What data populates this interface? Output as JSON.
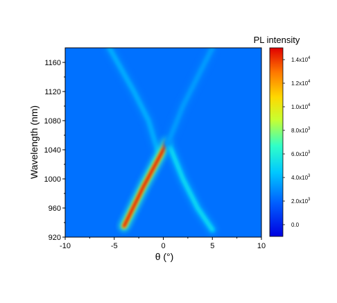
{
  "chart_data": {
    "type": "heatmap",
    "title": "",
    "xlabel": "θ (°)",
    "ylabel": "Wavelength (nm)",
    "xlim": [
      -10,
      10
    ],
    "ylim": [
      920,
      1180
    ],
    "x_ticks": [
      "-10",
      "-5",
      "0",
      "5",
      "10"
    ],
    "y_ticks": [
      "920",
      "960",
      "1000",
      "1040",
      "1080",
      "1120",
      "1160"
    ],
    "colorbar": {
      "title": "PL intensity",
      "range": [
        -1000,
        15000
      ],
      "tick_values": [
        0,
        2000,
        4000,
        6000,
        8000,
        10000,
        12000,
        14000
      ],
      "tick_labels": [
        {
          "base": "0.0",
          "exp": ""
        },
        {
          "base": "2.0x10",
          "exp": "3"
        },
        {
          "base": "4.0x10",
          "exp": "3"
        },
        {
          "base": "6.0x10",
          "exp": "3"
        },
        {
          "base": "8.0x10",
          "exp": "3"
        },
        {
          "base": "1.0x10",
          "exp": "4"
        },
        {
          "base": "1.2x10",
          "exp": "4"
        },
        {
          "base": "1.4x10",
          "exp": "4"
        }
      ]
    },
    "background_level": 2300,
    "features": [
      {
        "name": "upper branch (x decreases with λ)",
        "points": [
          [
            -4.0,
            935
          ],
          [
            -0.5,
            1035
          ],
          [
            -1.5,
            1080
          ],
          [
            -3.0,
            1120
          ],
          [
            -5.5,
            1180
          ]
        ],
        "peak": 4000
      },
      {
        "name": "lower bright branch",
        "points": [
          [
            -4.0,
            935
          ],
          [
            -2.0,
            990
          ],
          [
            0.0,
            1040
          ],
          [
            0.3,
            1050
          ]
        ],
        "peak": 15000
      },
      {
        "name": "right branch (x increases as λ decreases)",
        "points": [
          [
            0.5,
            1050
          ],
          [
            2.0,
            1000
          ],
          [
            3.5,
            960
          ],
          [
            5.0,
            930
          ]
        ],
        "peak": 5500
      },
      {
        "name": "upper right branch",
        "points": [
          [
            0.5,
            1050
          ],
          [
            2.0,
            1100
          ],
          [
            3.5,
            1140
          ],
          [
            5.0,
            1180
          ]
        ],
        "peak": 3500
      }
    ]
  }
}
